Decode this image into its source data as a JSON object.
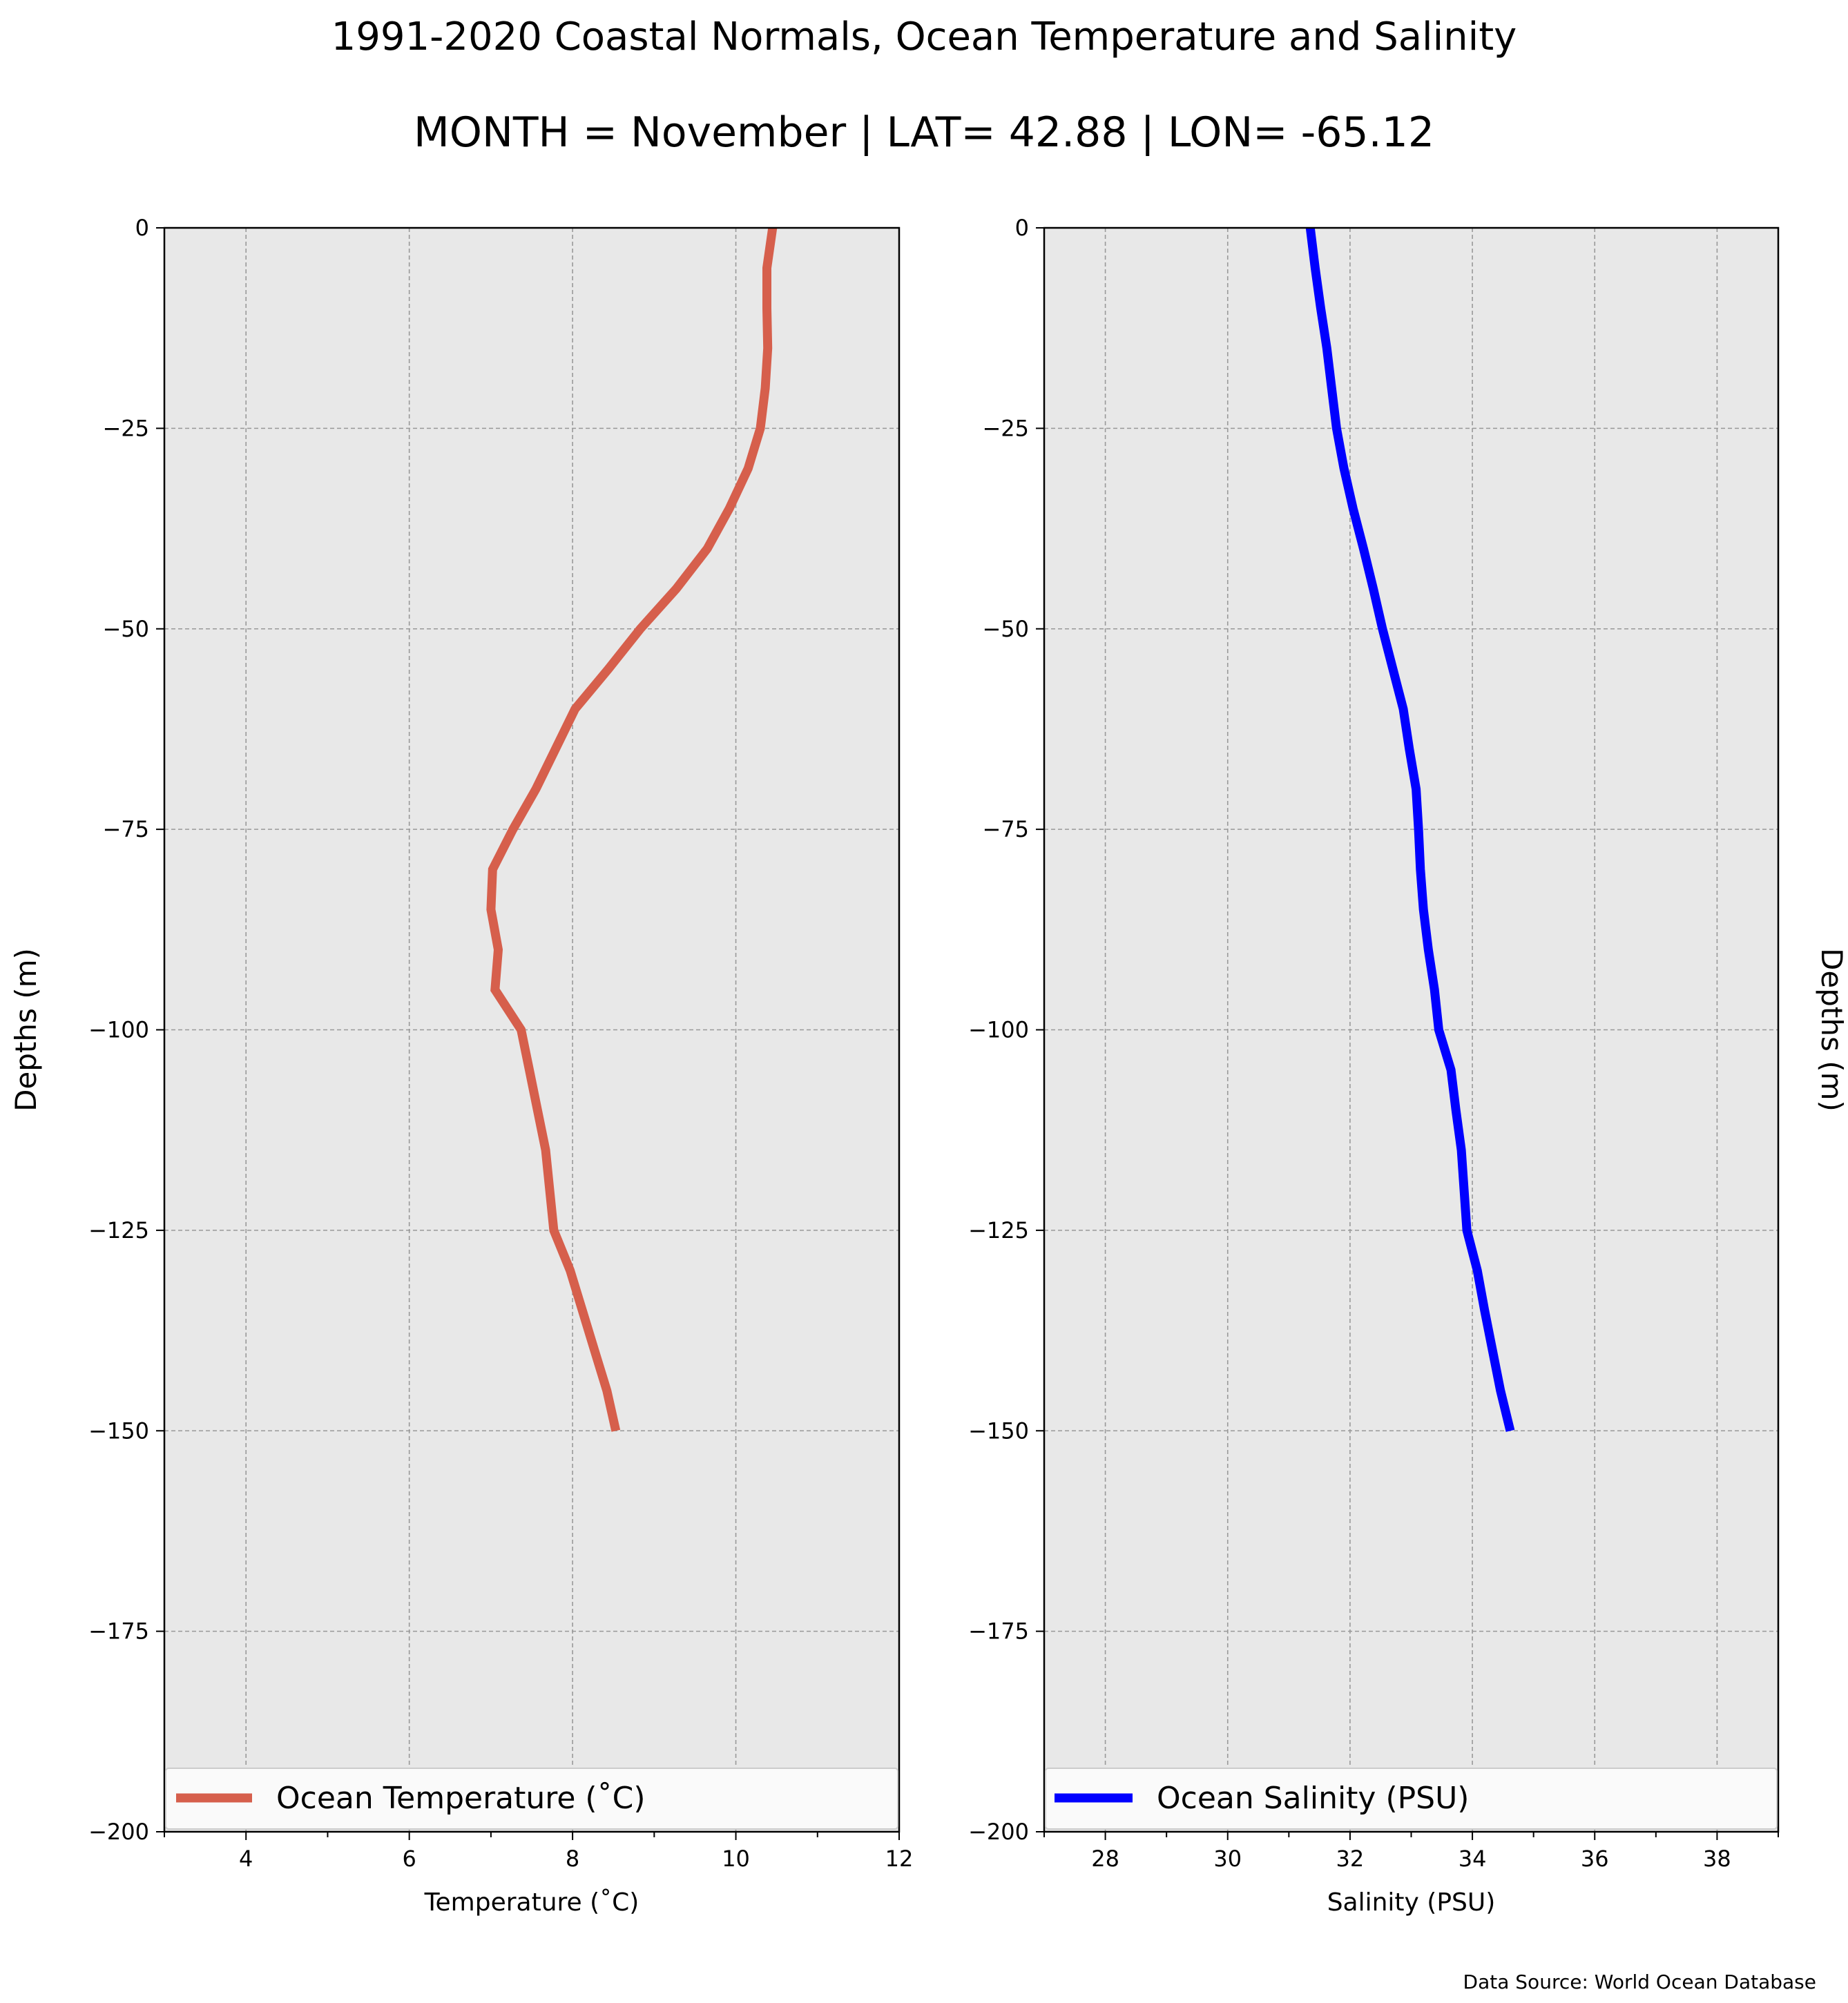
{
  "figure": {
    "title": "1991-2020 Coastal Normals, Ocean Temperature and Salinity",
    "subtitle": "MONTH = November | LAT= 42.88 | LON= -65.12",
    "source_note": "Data Source: World Ocean Database",
    "background_color": "#ffffff",
    "plot_background": "#e8e8e8",
    "grid_color": "#999999"
  },
  "chart_data": [
    {
      "type": "line",
      "orientation": "profile (x = value, y = depth)",
      "xlabel": "Temperature ($^\\circ$C)",
      "xlabel_display": "Temperature (˚C)",
      "ylabel": "Depths (m)",
      "xlim": [
        3,
        12
      ],
      "ylim": [
        -200,
        0
      ],
      "x_ticks": [
        4,
        6,
        8,
        10,
        12
      ],
      "y_ticks": [
        0,
        -25,
        -50,
        -75,
        -100,
        -125,
        -150,
        -175,
        -200
      ],
      "y_tick_labels": [
        "0",
        "−25",
        "−50",
        "−75",
        "−100",
        "−125",
        "−150",
        "−175",
        "−200"
      ],
      "grid": true,
      "legend_position": "bottom",
      "series": [
        {
          "name": "Ocean Temperature (˚C)",
          "color": "#d65f4c",
          "x": [
            10.45,
            10.38,
            10.38,
            10.39,
            10.36,
            10.3,
            10.15,
            9.92,
            9.65,
            9.27,
            8.83,
            8.44,
            8.03,
            7.79,
            7.55,
            7.27,
            7.02,
            7.0,
            7.09,
            7.05,
            7.37,
            7.47,
            7.57,
            7.67,
            7.77,
            7.97,
            8.12,
            8.27,
            8.42,
            8.53
          ],
          "y": [
            0,
            -5,
            -10,
            -15,
            -20,
            -25,
            -30,
            -35,
            -40,
            -45,
            -50,
            -55,
            -60,
            -65,
            -70,
            -75,
            -80,
            -85,
            -90,
            -95,
            -100,
            -105,
            -110,
            -115,
            -125,
            -130,
            -135,
            -140,
            -145,
            -150
          ]
        }
      ]
    },
    {
      "type": "line",
      "orientation": "profile (x = value, y = depth)",
      "xlabel": "Salinity (PSU)",
      "ylabel": "Depths (m)",
      "xlim": [
        27,
        39
      ],
      "ylim": [
        -200,
        0
      ],
      "x_ticks": [
        28,
        30,
        32,
        34,
        36,
        38
      ],
      "y_ticks": [
        0,
        -25,
        -50,
        -75,
        -100,
        -125,
        -150,
        -175,
        -200
      ],
      "y_tick_labels": [
        "0",
        "−25",
        "−50",
        "−75",
        "−100",
        "−125",
        "−150",
        "−175",
        "−200"
      ],
      "grid": true,
      "legend_position": "bottom",
      "series": [
        {
          "name": "Ocean Salinity (PSU)",
          "color": "#0000ff",
          "x": [
            31.35,
            31.43,
            31.52,
            31.62,
            31.7,
            31.78,
            31.9,
            32.05,
            32.22,
            32.38,
            32.53,
            32.7,
            32.87,
            32.97,
            33.08,
            33.12,
            33.15,
            33.2,
            33.28,
            33.38,
            33.45,
            33.65,
            33.73,
            33.82,
            33.91,
            34.08,
            34.2,
            34.33,
            34.46,
            34.62
          ],
          "y": [
            0,
            -5,
            -10,
            -15,
            -20,
            -25,
            -30,
            -35,
            -40,
            -45,
            -50,
            -55,
            -60,
            -65,
            -70,
            -75,
            -80,
            -85,
            -90,
            -95,
            -100,
            -105,
            -110,
            -115,
            -125,
            -130,
            -135,
            -140,
            -145,
            -150
          ]
        }
      ]
    }
  ]
}
